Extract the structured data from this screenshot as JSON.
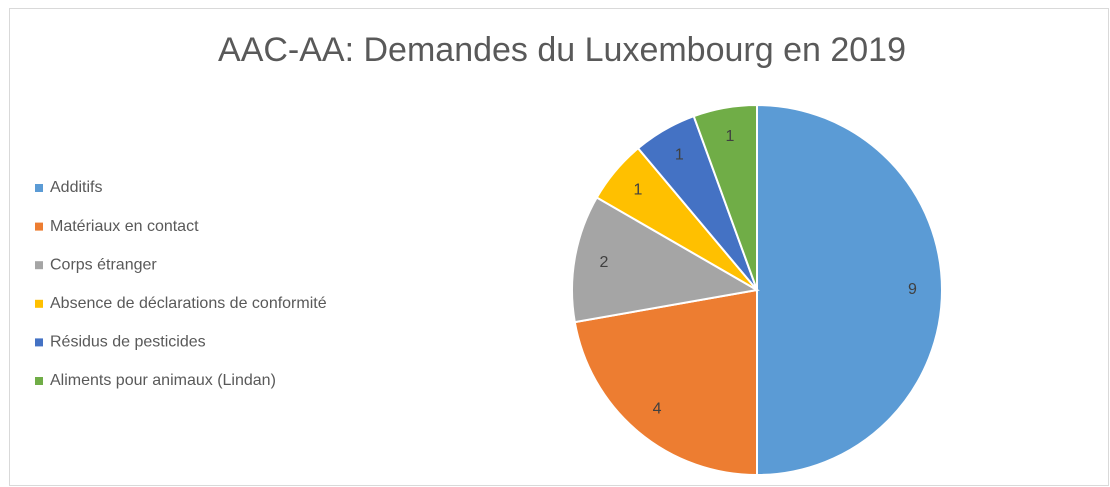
{
  "chart_data": {
    "type": "pie",
    "title": "AAC-AA: Demandes du Luxembourg en 2019",
    "categories": [
      "Additifs",
      "Matériaux en contact",
      "Corps étranger",
      "Absence de déclarations de conformité",
      "Résidus de pesticides",
      "Aliments pour animaux (Lindan)"
    ],
    "values": [
      9,
      4,
      2,
      1,
      1,
      1
    ],
    "colors": [
      "#5b9bd5",
      "#ed7d31",
      "#a5a5a5",
      "#ffc000",
      "#4472c4",
      "#70ad47"
    ],
    "legend": "left"
  }
}
